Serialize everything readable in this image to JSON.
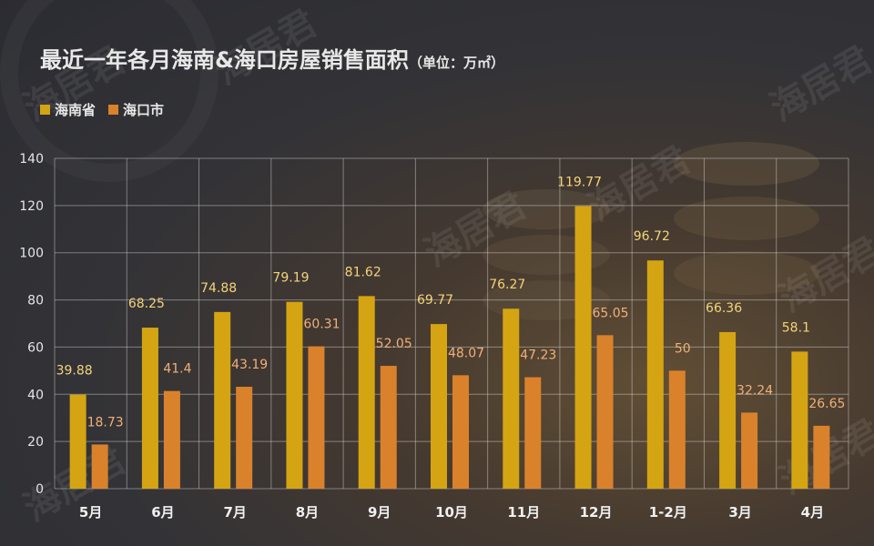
{
  "title": "最近一年各月海南&海口房屋销售面积",
  "title_unit": "（单位：万㎡）",
  "legend": [
    {
      "label": "海南省",
      "color": "#d4a413"
    },
    {
      "label": "海口市",
      "color": "#d9822b"
    }
  ],
  "watermark": "海居君",
  "chart_data": {
    "type": "bar",
    "categories": [
      "5月",
      "6月",
      "7月",
      "8月",
      "9月",
      "10月",
      "11月",
      "12月",
      "1-2月",
      "3月",
      "4月"
    ],
    "series": [
      {
        "name": "海南省",
        "values": [
          39.88,
          68.25,
          74.88,
          79.19,
          81.62,
          69.77,
          76.27,
          119.77,
          96.72,
          66.36,
          58.1
        ],
        "labels": [
          "39.88",
          "68.25",
          "74.88",
          "79.19",
          "81.62",
          "69.77",
          "76.27",
          "119.77",
          "96.72",
          "66.36",
          "58.1"
        ]
      },
      {
        "name": "海口市",
        "values": [
          18.73,
          41.4,
          43.19,
          60.31,
          52.05,
          48.07,
          47.23,
          65.05,
          50,
          32.24,
          26.65
        ],
        "labels": [
          "18.73",
          "41.4",
          "43.19",
          "60.31",
          "52.05",
          "48.07",
          "47.23",
          "65.05",
          "50",
          "32.24",
          "26.65"
        ]
      }
    ],
    "ylim": [
      0,
      140
    ],
    "yticks": [
      "0",
      "20",
      "40",
      "60",
      "80",
      "100",
      "120",
      "140"
    ],
    "grid": true,
    "legend_position": "top-left",
    "label_colors": [
      "#f3d47a",
      "#f0b07a"
    ]
  }
}
